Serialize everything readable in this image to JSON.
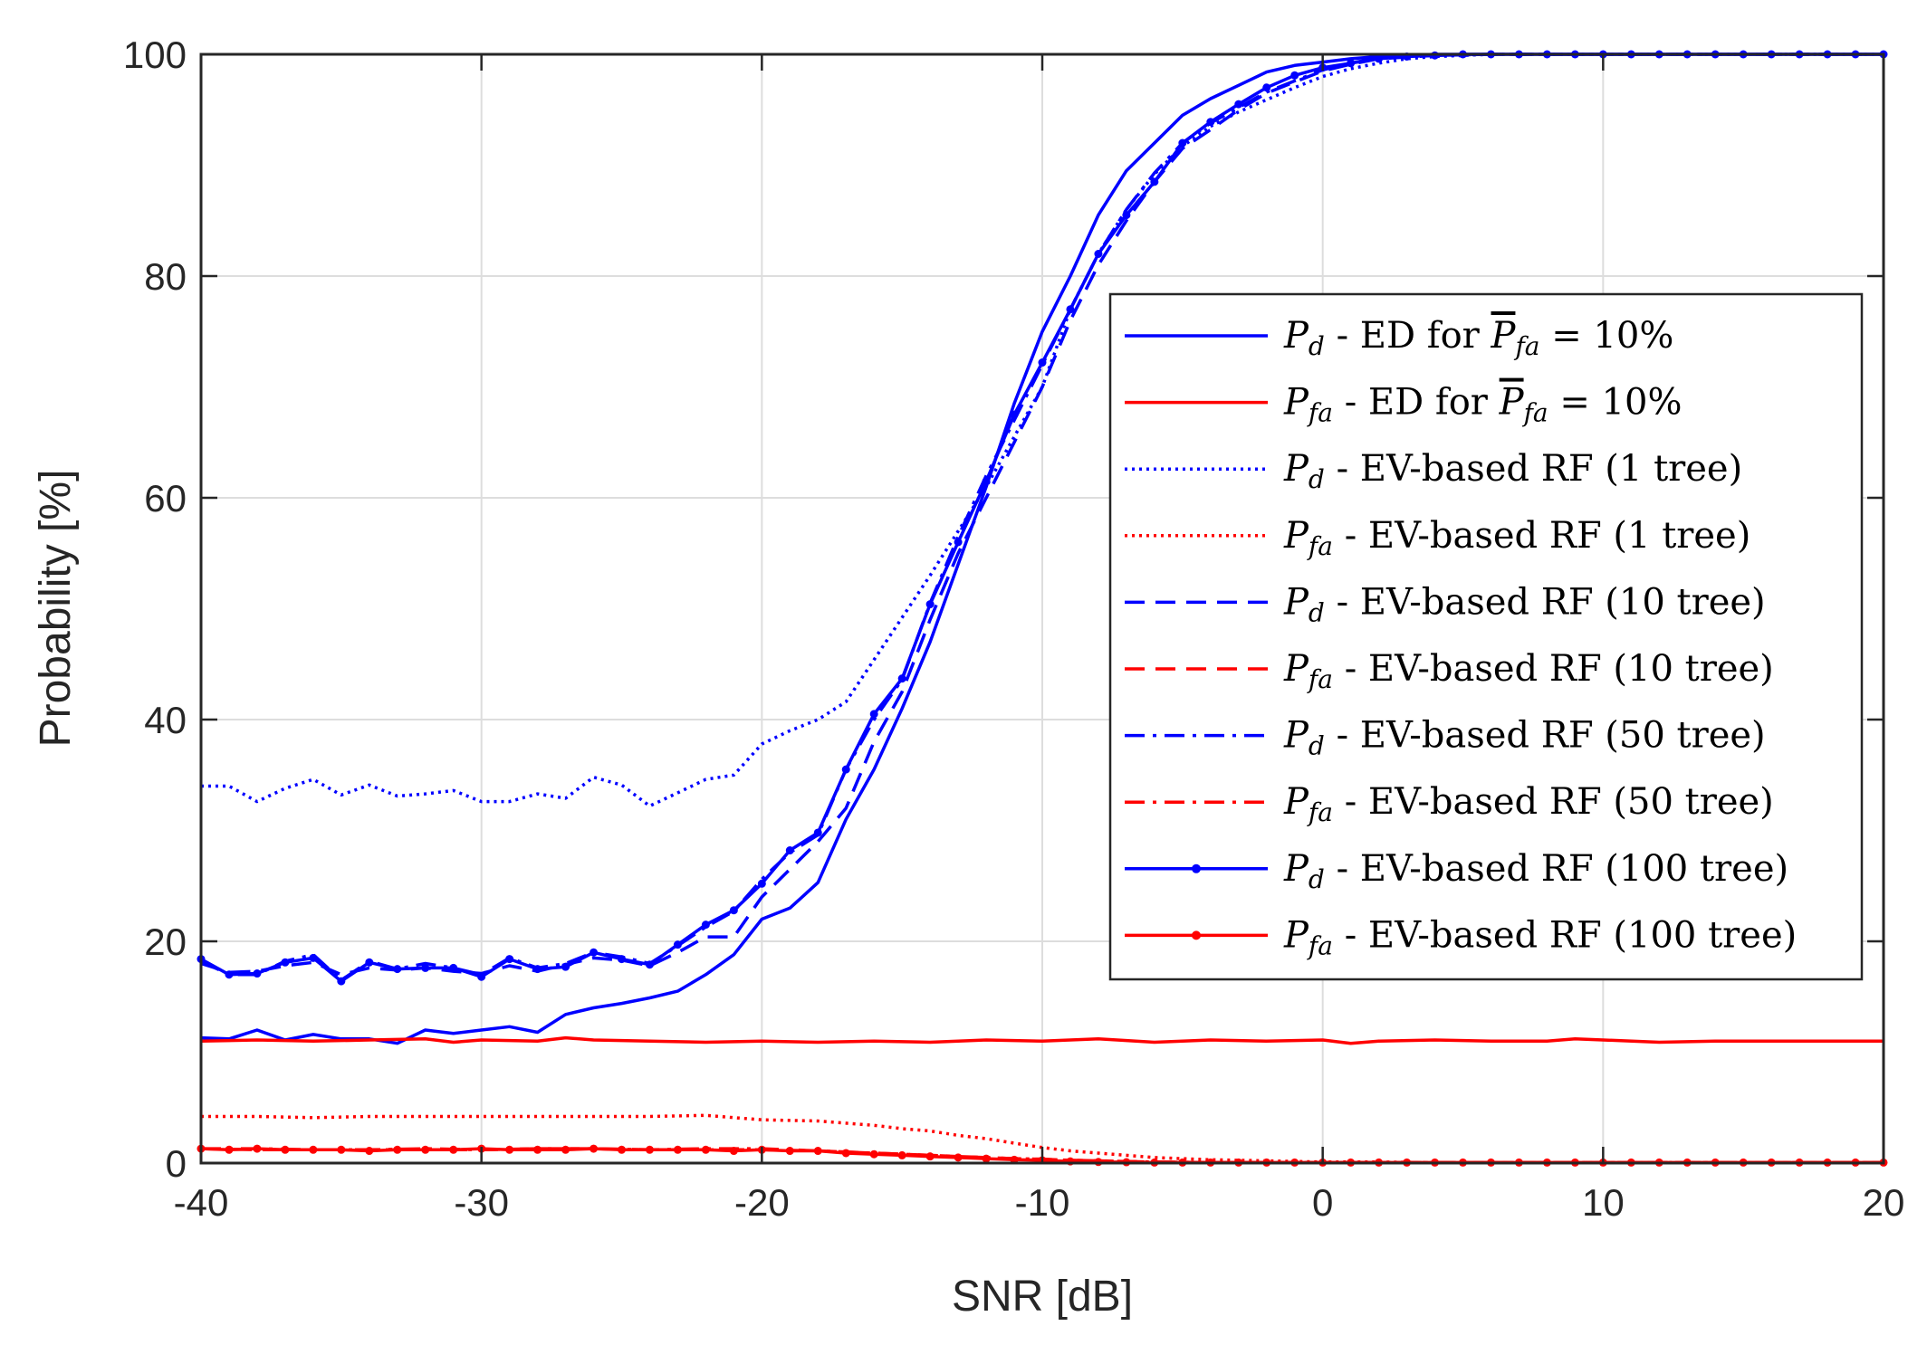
{
  "chart_data": {
    "type": "line",
    "title": "",
    "xlabel": "SNR [dB]",
    "ylabel": "Probability [%]",
    "xlim": [
      -40,
      20
    ],
    "ylim": [
      0,
      100
    ],
    "xticks": [
      -40,
      -30,
      -20,
      -10,
      0,
      10,
      20
    ],
    "yticks": [
      0,
      20,
      40,
      60,
      80,
      100
    ],
    "xtick_labels": [
      "-40",
      "-30",
      "-20",
      "-10",
      "0",
      "10",
      "20"
    ],
    "ytick_labels": [
      "0",
      "20",
      "40",
      "60",
      "80",
      "100"
    ],
    "grid": true,
    "legend_position": "right",
    "series": [
      {
        "name": "P_d - ED for P̄_fa = 10%",
        "legend": {
          "sym": "P",
          "sub": "d",
          "text": " - ED for ",
          "sym2": "P",
          "sub2": "fa",
          "tail": " = 10%",
          "overline": true
        },
        "color": "#0000ff",
        "style": "solid",
        "marker": false,
        "x": [
          -40,
          -39,
          -38,
          -37,
          -36,
          -35,
          -34,
          -33,
          -32,
          -31,
          -30,
          -29,
          -28,
          -27,
          -26,
          -25,
          -24,
          -23,
          -22,
          -21,
          -20,
          -19,
          -18,
          -17,
          -16,
          -15,
          -14,
          -13,
          -12,
          -11,
          -10,
          -9,
          -8,
          -7,
          -6,
          -5,
          -4,
          -3,
          -2,
          -1,
          0,
          1,
          2,
          3,
          4,
          5,
          6,
          8,
          10,
          12,
          14,
          16,
          18,
          20
        ],
        "y": [
          11.3,
          11.2,
          12.0,
          11.1,
          11.6,
          11.2,
          11.2,
          10.8,
          12.0,
          11.7,
          12.0,
          12.3,
          11.8,
          13.4,
          14.0,
          14.4,
          14.9,
          15.5,
          17.0,
          18.8,
          22.0,
          23.0,
          25.3,
          31.0,
          35.5,
          41.0,
          47.0,
          54.0,
          61.0,
          68.5,
          75.0,
          80.0,
          85.5,
          89.5,
          92.0,
          94.5,
          96.0,
          97.2,
          98.4,
          99.0,
          99.3,
          99.6,
          99.8,
          99.9,
          100,
          100,
          100,
          100,
          100,
          100,
          100,
          100,
          100,
          100
        ]
      },
      {
        "name": "P_fa - ED for P̄_fa = 10%",
        "legend": {
          "sym": "P",
          "sub": "fa",
          "text": " - ED for ",
          "sym2": "P",
          "sub2": "fa",
          "tail": " = 10%",
          "overline": true
        },
        "color": "#ff0000",
        "style": "solid",
        "marker": false,
        "x": [
          -40,
          -38,
          -36,
          -34,
          -32,
          -31,
          -30,
          -28,
          -27,
          -26,
          -24,
          -22,
          -20,
          -18,
          -16,
          -14,
          -12,
          -10,
          -8,
          -6,
          -4,
          -2,
          0,
          1,
          2,
          4,
          6,
          8,
          9,
          10,
          12,
          14,
          16,
          18,
          20
        ],
        "y": [
          11.0,
          11.1,
          11.0,
          11.1,
          11.2,
          10.9,
          11.1,
          11.0,
          11.3,
          11.1,
          11.0,
          10.9,
          11.0,
          10.9,
          11.0,
          10.9,
          11.1,
          11.0,
          11.2,
          10.9,
          11.1,
          11.0,
          11.1,
          10.8,
          11.0,
          11.1,
          11.0,
          11.0,
          11.2,
          11.1,
          10.9,
          11.0,
          11.0,
          11.0,
          11.0
        ]
      },
      {
        "name": "P_d - EV-based RF (1 tree)",
        "legend": {
          "sym": "P",
          "sub": "d",
          "text": " - EV-based RF (1 tree)"
        },
        "color": "#0000ff",
        "style": "dotted",
        "marker": false,
        "x": [
          -40,
          -39,
          -38,
          -37,
          -36,
          -35,
          -34,
          -33,
          -32,
          -31,
          -30,
          -29,
          -28,
          -27,
          -26,
          -25,
          -24,
          -23,
          -22,
          -21,
          -20,
          -19,
          -18,
          -17,
          -16,
          -15,
          -14,
          -13,
          -12,
          -11,
          -10,
          -9,
          -8,
          -7,
          -6,
          -5,
          -4,
          -3,
          -2,
          -1,
          0,
          1,
          2,
          3,
          4,
          6,
          8,
          10,
          12,
          14,
          16,
          18,
          20
        ],
        "y": [
          34.0,
          34.0,
          32.6,
          33.8,
          34.6,
          33.2,
          34.1,
          33.1,
          33.3,
          33.6,
          32.6,
          32.6,
          33.3,
          32.9,
          34.8,
          34.1,
          32.2,
          33.4,
          34.6,
          35.0,
          37.8,
          39.0,
          40.0,
          41.6,
          45.4,
          49.2,
          53.0,
          57.0,
          61.0,
          65.5,
          70.0,
          77.0,
          82.0,
          86.0,
          89.2,
          91.7,
          93.5,
          94.8,
          95.9,
          97.0,
          98.0,
          98.7,
          99.2,
          99.6,
          99.8,
          100,
          100,
          100,
          100,
          100,
          100,
          100,
          100
        ]
      },
      {
        "name": "P_fa - EV-based RF (1 tree)",
        "legend": {
          "sym": "P",
          "sub": "fa",
          "text": " - EV-based RF (1 tree)"
        },
        "color": "#ff0000",
        "style": "dotted",
        "marker": false,
        "x": [
          -40,
          -38,
          -36,
          -34,
          -32,
          -30,
          -28,
          -26,
          -24,
          -22,
          -21,
          -20,
          -18,
          -16,
          -15,
          -14,
          -13,
          -12,
          -11,
          -10,
          -9,
          -8,
          -7,
          -6,
          -5,
          -4,
          -3,
          -2,
          -1,
          0,
          2,
          4,
          6,
          8,
          10,
          12,
          14,
          16,
          18,
          20
        ],
        "y": [
          4.2,
          4.2,
          4.1,
          4.2,
          4.2,
          4.2,
          4.2,
          4.2,
          4.2,
          4.3,
          4.1,
          3.9,
          3.8,
          3.4,
          3.1,
          2.9,
          2.5,
          2.2,
          1.8,
          1.4,
          1.1,
          0.9,
          0.7,
          0.5,
          0.4,
          0.3,
          0.25,
          0.2,
          0.15,
          0.1,
          0.1,
          0.05,
          0.05,
          0.05,
          0.05,
          0.05,
          0.05,
          0.05,
          0.05,
          0.05
        ]
      },
      {
        "name": "P_d - EV-based RF (10 tree)",
        "legend": {
          "sym": "P",
          "sub": "d",
          "text": " - EV-based RF (10 tree)"
        },
        "color": "#0000ff",
        "style": "dashed",
        "marker": false,
        "x": [
          -40,
          -39,
          -38,
          -37,
          -36,
          -35,
          -34,
          -33,
          -32,
          -31,
          -30,
          -29,
          -28,
          -27,
          -26,
          -25,
          -24,
          -23,
          -22,
          -21,
          -20,
          -19,
          -18,
          -17,
          -16,
          -15,
          -14,
          -13,
          -12,
          -11,
          -10,
          -9,
          -8,
          -7,
          -6,
          -5,
          -4,
          -3,
          -2,
          -1,
          0,
          1,
          2,
          4,
          6,
          8,
          10,
          12,
          14,
          16,
          18,
          20
        ],
        "y": [
          18.0,
          17.2,
          17.3,
          17.8,
          18.1,
          17.0,
          17.6,
          17.4,
          17.6,
          17.3,
          17.1,
          17.8,
          17.3,
          17.9,
          18.5,
          18.3,
          17.8,
          19.0,
          20.4,
          20.4,
          24.0,
          26.5,
          29.0,
          32.0,
          38.0,
          42.5,
          49.0,
          55.0,
          60.0,
          65.0,
          70.0,
          76.0,
          81.0,
          85.0,
          88.5,
          91.5,
          93.2,
          95.0,
          96.5,
          97.5,
          98.5,
          99.1,
          99.6,
          99.9,
          100,
          100,
          100,
          100,
          100,
          100,
          100,
          100
        ]
      },
      {
        "name": "P_fa - EV-based RF (10 tree)",
        "legend": {
          "sym": "P",
          "sub": "fa",
          "text": " - EV-based RF (10 tree)"
        },
        "color": "#ff0000",
        "style": "dashed",
        "marker": false,
        "x": [
          -40,
          -38,
          -36,
          -34,
          -32,
          -30,
          -28,
          -26,
          -24,
          -22,
          -20,
          -18,
          -16,
          -15,
          -14,
          -13,
          -12,
          -11,
          -10,
          -9,
          -8,
          -7,
          -6,
          -4,
          -2,
          0,
          2,
          4,
          6,
          8,
          10,
          12,
          14,
          16,
          18,
          20
        ],
        "y": [
          1.3,
          1.2,
          1.2,
          1.2,
          1.2,
          1.2,
          1.3,
          1.3,
          1.2,
          1.2,
          1.2,
          1.1,
          0.9,
          0.8,
          0.7,
          0.6,
          0.5,
          0.4,
          0.35,
          0.25,
          0.2,
          0.15,
          0.1,
          0.05,
          0.05,
          0.05,
          0.05,
          0.05,
          0.05,
          0.05,
          0.05,
          0.05,
          0.05,
          0.05,
          0.05,
          0.05
        ]
      },
      {
        "name": "P_d - EV-based RF (50 tree)",
        "legend": {
          "sym": "P",
          "sub": "d",
          "text": " - EV-based RF (50 tree)"
        },
        "color": "#0000ff",
        "style": "dashdot",
        "marker": false,
        "x": [
          -40,
          -39,
          -38,
          -37,
          -36,
          -35,
          -34,
          -33,
          -32,
          -31,
          -30,
          -29,
          -28,
          -27,
          -26,
          -25,
          -24,
          -23,
          -22,
          -21,
          -20,
          -19,
          -18,
          -17,
          -16,
          -15,
          -14,
          -13,
          -12,
          -11,
          -10,
          -9,
          -8,
          -7,
          -6,
          -5,
          -4,
          -3,
          -2,
          -1,
          0,
          1,
          2,
          4,
          6,
          8,
          10,
          12,
          14,
          16,
          18,
          20
        ],
        "y": [
          18.2,
          17.0,
          17.0,
          18.2,
          18.8,
          16.5,
          18.2,
          17.5,
          18.0,
          17.6,
          17.0,
          18.5,
          17.6,
          18.0,
          19.0,
          18.6,
          18.0,
          19.6,
          21.3,
          22.7,
          25.6,
          28.0,
          29.6,
          35.5,
          40.0,
          43.6,
          50.5,
          56.5,
          62.0,
          67.0,
          72.0,
          77.0,
          82.0,
          86.0,
          89.3,
          92.0,
          93.8,
          95.2,
          96.6,
          97.6,
          98.6,
          99.2,
          99.7,
          99.9,
          100,
          100,
          100,
          100,
          100,
          100,
          100,
          100
        ]
      },
      {
        "name": "P_fa - EV-based RF (50 tree)",
        "legend": {
          "sym": "P",
          "sub": "fa",
          "text": " - EV-based RF (50 tree)"
        },
        "color": "#ff0000",
        "style": "dashdot",
        "marker": false,
        "x": [
          -40,
          -38,
          -36,
          -34,
          -32,
          -30,
          -28,
          -26,
          -24,
          -22,
          -20,
          -18,
          -16,
          -15,
          -14,
          -13,
          -12,
          -11,
          -10,
          -9,
          -8,
          -7,
          -6,
          -4,
          -2,
          0,
          2,
          4,
          6,
          8,
          10,
          12,
          14,
          16,
          18,
          20
        ],
        "y": [
          1.3,
          1.3,
          1.2,
          1.2,
          1.3,
          1.2,
          1.3,
          1.3,
          1.2,
          1.3,
          1.3,
          1.1,
          0.9,
          0.8,
          0.7,
          0.6,
          0.5,
          0.4,
          0.35,
          0.25,
          0.2,
          0.15,
          0.1,
          0.05,
          0.05,
          0.05,
          0.05,
          0.05,
          0.05,
          0.05,
          0.05,
          0.05,
          0.05,
          0.05,
          0.05,
          0.05
        ]
      },
      {
        "name": "P_d - EV-based RF (100 tree)",
        "legend": {
          "sym": "P",
          "sub": "d",
          "text": " - EV-based RF (100 tree)"
        },
        "color": "#0000ff",
        "style": "solid",
        "marker": true,
        "x": [
          -40,
          -39,
          -38,
          -37,
          -36,
          -35,
          -34,
          -33,
          -32,
          -31,
          -30,
          -29,
          -28,
          -27,
          -26,
          -25,
          -24,
          -23,
          -22,
          -21,
          -20,
          -19,
          -18,
          -17,
          -16,
          -15,
          -14,
          -13,
          -12,
          -11,
          -10,
          -9,
          -8,
          -7,
          -6,
          -5,
          -4,
          -3,
          -2,
          -1,
          0,
          1,
          2,
          3,
          4,
          5,
          6,
          7,
          8,
          9,
          10,
          11,
          12,
          13,
          14,
          15,
          16,
          17,
          18,
          19,
          20
        ],
        "y": [
          18.4,
          17.0,
          17.1,
          18.1,
          18.5,
          16.4,
          18.1,
          17.5,
          17.6,
          17.6,
          16.8,
          18.4,
          17.5,
          17.7,
          19.0,
          18.4,
          17.9,
          19.7,
          21.5,
          22.8,
          25.2,
          28.2,
          29.8,
          35.5,
          40.5,
          43.7,
          50.4,
          56.0,
          61.5,
          67.5,
          72.2,
          77.0,
          82.0,
          85.5,
          88.5,
          92.0,
          93.9,
          95.5,
          97.0,
          98.1,
          98.8,
          99.2,
          99.6,
          99.8,
          99.9,
          100,
          100,
          100,
          100,
          100,
          100,
          100,
          100,
          100,
          100,
          100,
          100,
          100,
          100,
          100,
          100
        ]
      },
      {
        "name": "P_fa - EV-based RF (100 tree)",
        "legend": {
          "sym": "P",
          "sub": "fa",
          "text": " - EV-based RF (100 tree)"
        },
        "color": "#ff0000",
        "style": "solid",
        "marker": true,
        "x": [
          -40,
          -39,
          -38,
          -37,
          -36,
          -35,
          -34,
          -33,
          -32,
          -31,
          -30,
          -29,
          -28,
          -27,
          -26,
          -25,
          -24,
          -23,
          -22,
          -21,
          -20,
          -19,
          -18,
          -17,
          -16,
          -15,
          -14,
          -13,
          -12,
          -11,
          -10,
          -9,
          -8,
          -7,
          -6,
          -5,
          -4,
          -3,
          -2,
          -1,
          0,
          1,
          2,
          3,
          4,
          5,
          6,
          7,
          8,
          9,
          10,
          11,
          12,
          13,
          14,
          15,
          16,
          17,
          18,
          19,
          20
        ],
        "y": [
          1.3,
          1.2,
          1.3,
          1.2,
          1.2,
          1.2,
          1.1,
          1.2,
          1.2,
          1.2,
          1.3,
          1.2,
          1.2,
          1.2,
          1.3,
          1.2,
          1.2,
          1.2,
          1.2,
          1.1,
          1.2,
          1.1,
          1.1,
          0.9,
          0.8,
          0.7,
          0.6,
          0.5,
          0.4,
          0.3,
          0.25,
          0.15,
          0.1,
          0.08,
          0.05,
          0.05,
          0.05,
          0.05,
          0.05,
          0.05,
          0.05,
          0.05,
          0.05,
          0.05,
          0.05,
          0.05,
          0.05,
          0.05,
          0.05,
          0.05,
          0.05,
          0.05,
          0.05,
          0.05,
          0.05,
          0.05,
          0.05,
          0.05,
          0.05,
          0.05,
          0.05
        ]
      }
    ]
  }
}
